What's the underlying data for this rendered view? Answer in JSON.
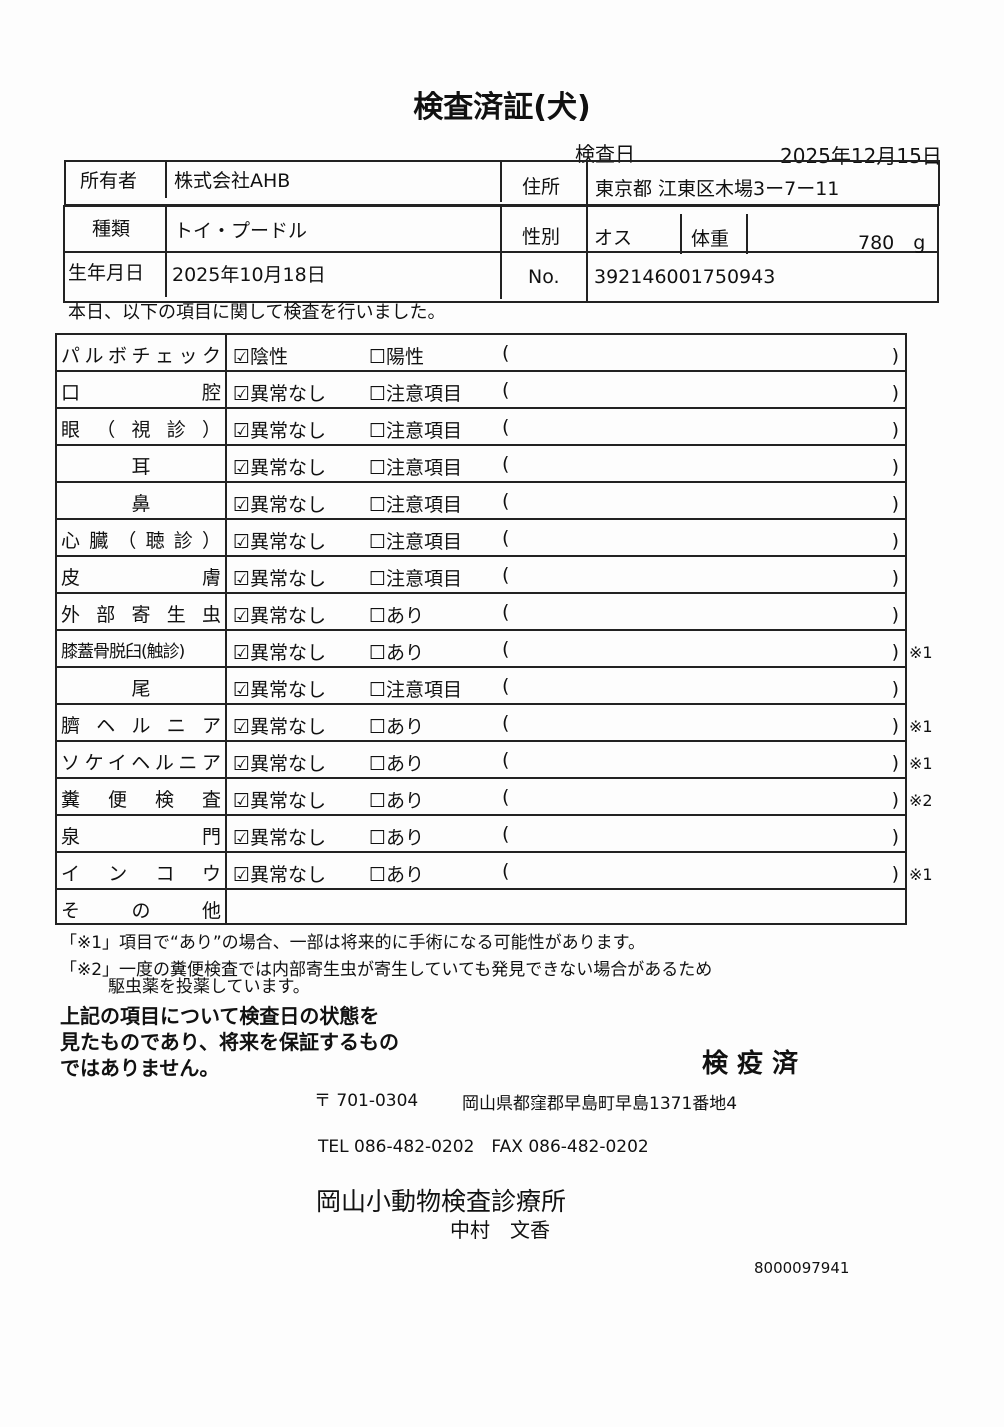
{
  "title": "検査済証(犬)",
  "inspection_date_label": "検査日",
  "inspection_date": "2025年12月15日",
  "owner_label": "所有者",
  "owner": "株式会社AHB",
  "address_label": "住所",
  "address": "東京都 江東区木場3ー7ー11",
  "breed_label": "種類",
  "breed": "トイ・プードル",
  "sex_label": "性別",
  "sex": "オス",
  "weight_label": "体重",
  "weight": "780　g",
  "birth_label": "生年月日",
  "birth": "2025年10月18日",
  "no_label": "No.",
  "no": "392146001750943",
  "intro": "本日、以下の項目に関して検査を行いました。",
  "items": [
    {
      "label": "パルボチェック",
      "opt1": "☑陰性",
      "opt2": "☐陽性",
      "open": "(",
      "close": ")",
      "mark": ""
    },
    {
      "label": "口腔",
      "opt1": "☑異常なし",
      "opt2": "☐注意項目",
      "open": "(",
      "close": ")",
      "mark": ""
    },
    {
      "label": "眼（視診）",
      "opt1": "☑異常なし",
      "opt2": "☐注意項目",
      "open": "(",
      "close": ")",
      "mark": ""
    },
    {
      "label": "耳",
      "opt1": "☑異常なし",
      "opt2": "☐注意項目",
      "open": "(",
      "close": ")",
      "mark": ""
    },
    {
      "label": "鼻",
      "opt1": "☑異常なし",
      "opt2": "☐注意項目",
      "open": "(",
      "close": ")",
      "mark": ""
    },
    {
      "label": "心臓（聴診）",
      "opt1": "☑異常なし",
      "opt2": "☐注意項目",
      "open": "(",
      "close": ")",
      "mark": ""
    },
    {
      "label": "皮膚",
      "opt1": "☑異常なし",
      "opt2": "☐注意項目",
      "open": "(",
      "close": ")",
      "mark": ""
    },
    {
      "label": "外部寄生虫",
      "opt1": "☑異常なし",
      "opt2": "☐あり",
      "open": "(",
      "close": ")",
      "mark": ""
    },
    {
      "label": "膝蓋骨脱臼(触診)",
      "opt1": "☑異常なし",
      "opt2": "☐あり",
      "open": "(",
      "close": ")",
      "mark": "※1"
    },
    {
      "label": "尾",
      "opt1": "☑異常なし",
      "opt2": "☐注意項目",
      "open": "(",
      "close": ")",
      "mark": ""
    },
    {
      "label": "臍ヘルニア",
      "opt1": "☑異常なし",
      "opt2": "☐あり",
      "open": "(",
      "close": ")",
      "mark": "※1"
    },
    {
      "label": "ソケイヘルニア",
      "opt1": "☑異常なし",
      "opt2": "☐あり",
      "open": "(",
      "close": ")",
      "mark": "※1"
    },
    {
      "label": "糞便検査",
      "opt1": "☑異常なし",
      "opt2": "☐あり",
      "open": "(",
      "close": ")",
      "mark": "※2"
    },
    {
      "label": "泉門",
      "opt1": "☑異常なし",
      "opt2": "☐あり",
      "open": "(",
      "close": ")",
      "mark": ""
    },
    {
      "label": "インコウ",
      "opt1": "☑異常なし",
      "opt2": "☐あり",
      "open": "(",
      "close": ")",
      "mark": "※1"
    },
    {
      "label": "その他",
      "opt1": "",
      "opt2": "",
      "open": "",
      "close": "",
      "mark": ""
    }
  ],
  "note1": "「※1」項目で“あり”の場合、一部は将来的に手術になる可能性があります。",
  "note2": "「※2」一度の糞便検査では内部寄生虫が寄生していても発見できない場合があるため",
  "note2b": "駆虫薬を投薬しています。",
  "disclaimer": [
    "上記の項目について検査日の状態を",
    "見たものであり、将来を保証するもの",
    "ではありません。"
  ],
  "stamp": "検 疫 済",
  "postal": "〒 701-0304",
  "clinic_address": "岡山県都窪郡早島町早島1371番地4",
  "tel_fax": "TEL 086-482-0202　FAX 086-482-0202",
  "clinic_name": "岡山小動物検査診療所",
  "vet_name": "中村　文香",
  "doc_number": "8000097941"
}
